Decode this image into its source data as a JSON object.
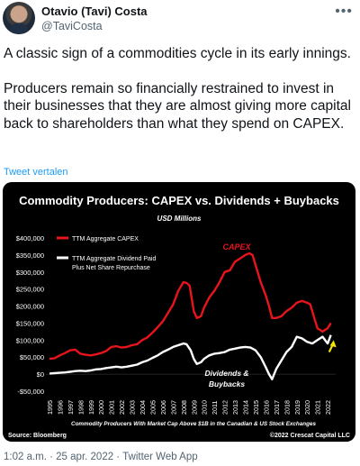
{
  "author": {
    "name": "Otavio (Tavi) Costa",
    "handle": "@TaviCosta"
  },
  "more_icon": "more-options-icon",
  "tweet": {
    "paragraph1": "A classic sign of a commodities cycle in its early innings.",
    "paragraph2": "Producers remain so financially restrained to invest in their businesses that they are almost giving more capital back to shareholders than what they spend on CAPEX.",
    "translate": "Tweet vertalen"
  },
  "meta": {
    "timestamp": "1:02 a.m. · 25 apr. 2022 · Twitter Web App"
  },
  "colors": {
    "capex": "#e8141c",
    "dividends": "#ffffff",
    "arrow": "#f5e400",
    "link": "#1d9bf0"
  },
  "chart_data": {
    "type": "line",
    "title": "Commodity Producers: CAPEX vs. Dividends + Buybacks",
    "subtitle": "USD Millions",
    "ylim": [
      -50000,
      400000
    ],
    "yticks": [
      -50000,
      0,
      50000,
      100000,
      150000,
      200000,
      250000,
      300000,
      350000,
      400000
    ],
    "ytick_labels": [
      "-$50,000",
      "$0",
      "$50,000",
      "$100,000",
      "$150,000",
      "$200,000",
      "$250,000",
      "$300,000",
      "$350,000",
      "$400,000"
    ],
    "xlim": [
      1995,
      2022.6
    ],
    "xticks": [
      "1995",
      "1996",
      "1997",
      "1998",
      "1999",
      "2000",
      "2001",
      "2002",
      "2003",
      "2004",
      "2005",
      "2006",
      "2007",
      "2008",
      "2009",
      "2010",
      "2011",
      "2012",
      "2013",
      "2014",
      "2015",
      "2016",
      "2017",
      "2018",
      "2019",
      "2020",
      "2021",
      "2022"
    ],
    "legend": [
      "TTM Aggregate CAPEX",
      "TTM Aggregate Dividend Paid Plus Net Share Repurchase"
    ],
    "annotations": {
      "capex": "CAPEX",
      "dividends": "Dividends & Buybacks"
    },
    "footnote": "Commodity Producers With Market Cap Above $1B in the Canadian & US Stock Exchanges",
    "source": "Source: Bloomberg",
    "copyright": "©2022 Crescat Capital LLC",
    "series": [
      {
        "name": "TTM Aggregate CAPEX",
        "x": [
          1995,
          1995.5,
          1996,
          1996.5,
          1997,
          1997.5,
          1998,
          1998.5,
          1999,
          1999.5,
          2000,
          2000.5,
          2001,
          2001.5,
          2002,
          2002.5,
          2003,
          2003.5,
          2004,
          2004.5,
          2005,
          2005.5,
          2006,
          2006.5,
          2007,
          2007.5,
          2008,
          2008.3,
          2008.6,
          2009,
          2009.3,
          2009.7,
          2010,
          2010.5,
          2011,
          2011.5,
          2012,
          2012.5,
          2013,
          2013.5,
          2014,
          2014.4,
          2014.7,
          2015,
          2015.5,
          2016,
          2016.3,
          2016.6,
          2017,
          2017.5,
          2018,
          2018.5,
          2019,
          2019.5,
          2020,
          2020.3,
          2020.7,
          2021,
          2021.5,
          2022,
          2022.3
        ],
        "values": [
          45000,
          47000,
          55000,
          62000,
          70000,
          72000,
          60000,
          57000,
          55000,
          58000,
          62000,
          68000,
          80000,
          82000,
          78000,
          80000,
          85000,
          88000,
          100000,
          108000,
          122000,
          138000,
          155000,
          180000,
          205000,
          245000,
          270000,
          268000,
          260000,
          185000,
          165000,
          170000,
          195000,
          225000,
          245000,
          270000,
          300000,
          305000,
          330000,
          340000,
          350000,
          355000,
          350000,
          320000,
          270000,
          230000,
          200000,
          165000,
          165000,
          170000,
          185000,
          195000,
          210000,
          215000,
          210000,
          205000,
          165000,
          135000,
          125000,
          135000,
          150000
        ]
      },
      {
        "name": "TTM Aggregate Dividend Paid Plus Net Share Repurchase",
        "x": [
          1995,
          1995.5,
          1996,
          1996.5,
          1997,
          1997.5,
          1998,
          1998.5,
          1999,
          1999.5,
          2000,
          2000.5,
          2001,
          2001.5,
          2002,
          2002.5,
          2003,
          2003.5,
          2004,
          2004.5,
          2005,
          2005.5,
          2006,
          2006.5,
          2007,
          2007.5,
          2008,
          2008.3,
          2008.7,
          2009,
          2009.3,
          2009.7,
          2010,
          2010.5,
          2011,
          2011.5,
          2012,
          2012.5,
          2013,
          2013.5,
          2014,
          2014.5,
          2015,
          2015.5,
          2016,
          2016.3,
          2016.6,
          2017,
          2017.5,
          2018,
          2018.5,
          2019,
          2019.5,
          2020,
          2020.5,
          2021,
          2021.5,
          2022,
          2022.3
        ],
        "values": [
          2000,
          3000,
          4000,
          5000,
          7000,
          9000,
          10000,
          9000,
          11000,
          14000,
          15000,
          18000,
          20000,
          22000,
          20000,
          22000,
          25000,
          28000,
          35000,
          40000,
          48000,
          55000,
          65000,
          72000,
          80000,
          85000,
          90000,
          88000,
          70000,
          45000,
          30000,
          35000,
          45000,
          55000,
          60000,
          62000,
          65000,
          72000,
          75000,
          78000,
          80000,
          78000,
          70000,
          50000,
          20000,
          0,
          -15000,
          15000,
          40000,
          65000,
          80000,
          110000,
          105000,
          95000,
          90000,
          100000,
          110000,
          90000,
          115000
        ]
      }
    ],
    "arrow": {
      "x": 2022.4,
      "from_y": 65000,
      "to_y": 100000
    }
  }
}
